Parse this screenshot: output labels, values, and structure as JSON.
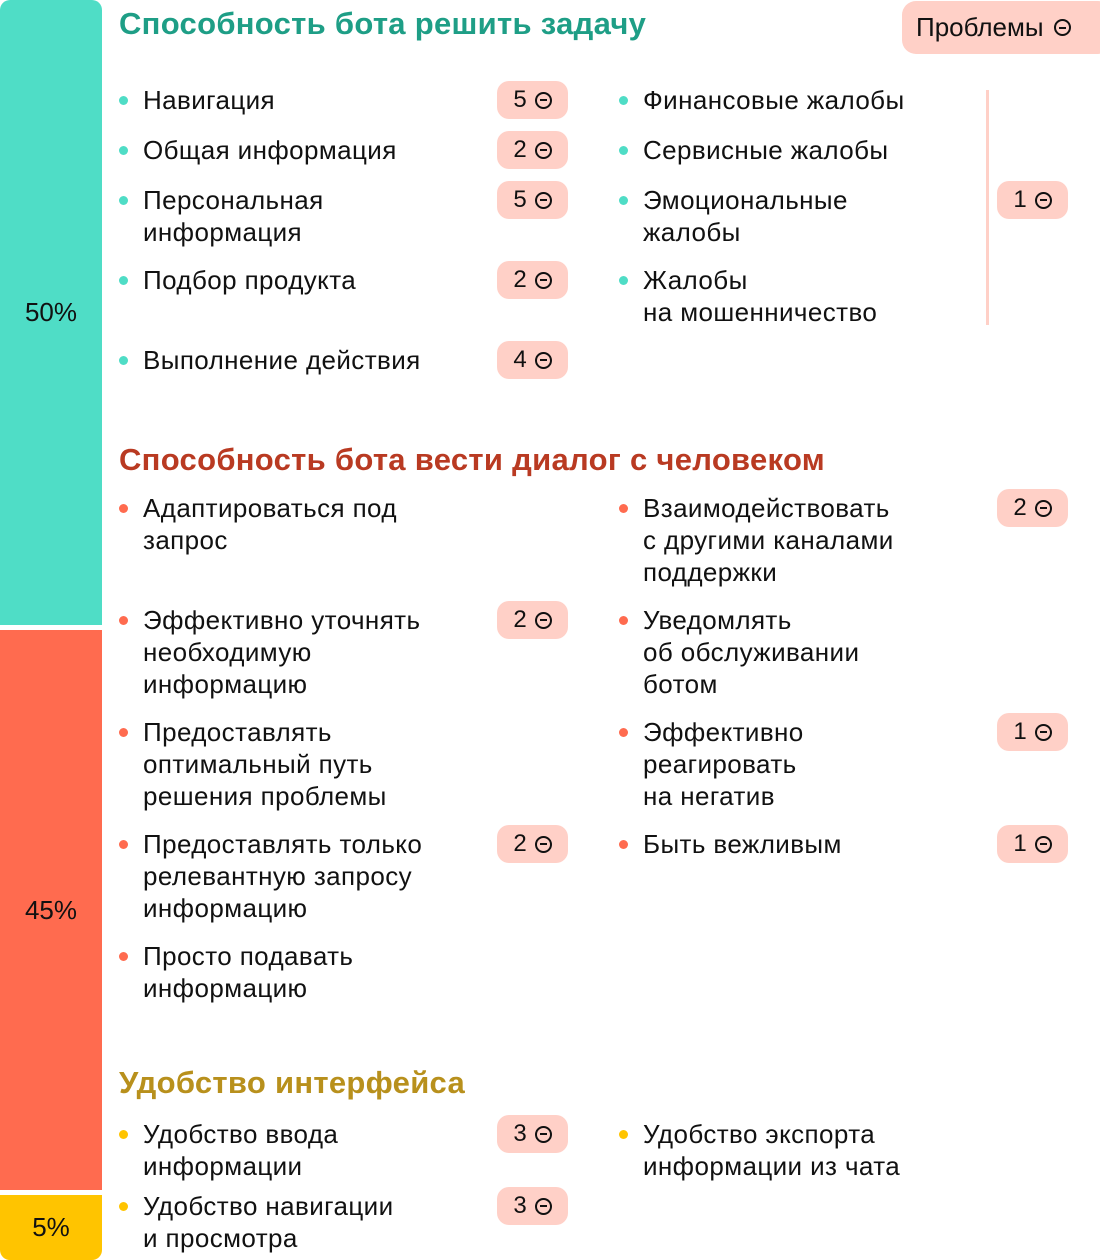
{
  "bars": {
    "task": "50%",
    "dialog": "45%",
    "interface": "5%"
  },
  "problems_label": "Проблемы",
  "colors": {
    "teal": "#4FDDC6",
    "salmon": "#FF6B4F",
    "yellow": "#FFC400",
    "badge": "#FFD0C7"
  },
  "s1": {
    "title": "Способность бота решить задачу",
    "left": [
      {
        "text": "Навигация",
        "count": "5"
      },
      {
        "text": "Общая информация",
        "count": "2"
      },
      {
        "text": "Персональная\nинформация",
        "count": "5"
      },
      {
        "text": "Подбор продукта",
        "count": "2"
      },
      {
        "text": "Выполнение действия",
        "count": "4"
      }
    ],
    "right": [
      {
        "text": "Финансовые жалобы"
      },
      {
        "text": "Сервисные жалобы"
      },
      {
        "text": "Эмоциональные\nжалобы"
      },
      {
        "text": "Жалобы\nна мошенничество"
      }
    ],
    "right_group_count": "1"
  },
  "s2": {
    "title": "Способность бота вести диалог с человеком",
    "left": [
      {
        "text": "Адаптироваться под\nзапрос"
      },
      {
        "text": "Эффективно уточнять\nнеобходимую\nинформацию",
        "count": "2"
      },
      {
        "text": "Предоставлять\nоптимальный путь\nрешения проблемы"
      },
      {
        "text": "Предоставлять только\nрелевантную запросу\nинформацию",
        "count": "2"
      },
      {
        "text": "Просто подавать\nинформацию"
      }
    ],
    "right": [
      {
        "text": "Взаимодействовать\nс другими каналами\nподдержки",
        "count": "2"
      },
      {
        "text": "Уведомлять\nоб обслуживании\nботом"
      },
      {
        "text": "Эффективно\nреагировать\nна негатив",
        "count": "1"
      },
      {
        "text": "Быть вежливым",
        "count": "1"
      }
    ]
  },
  "s3": {
    "title": "Удобство интерфейса",
    "left": [
      {
        "text": "Удобство ввода\nинформации",
        "count": "3"
      },
      {
        "text": "Удобство навигации\nи просмотра",
        "count": "3"
      }
    ],
    "right": [
      {
        "text": "Удобство экспорта\nинформации из чата"
      }
    ]
  }
}
